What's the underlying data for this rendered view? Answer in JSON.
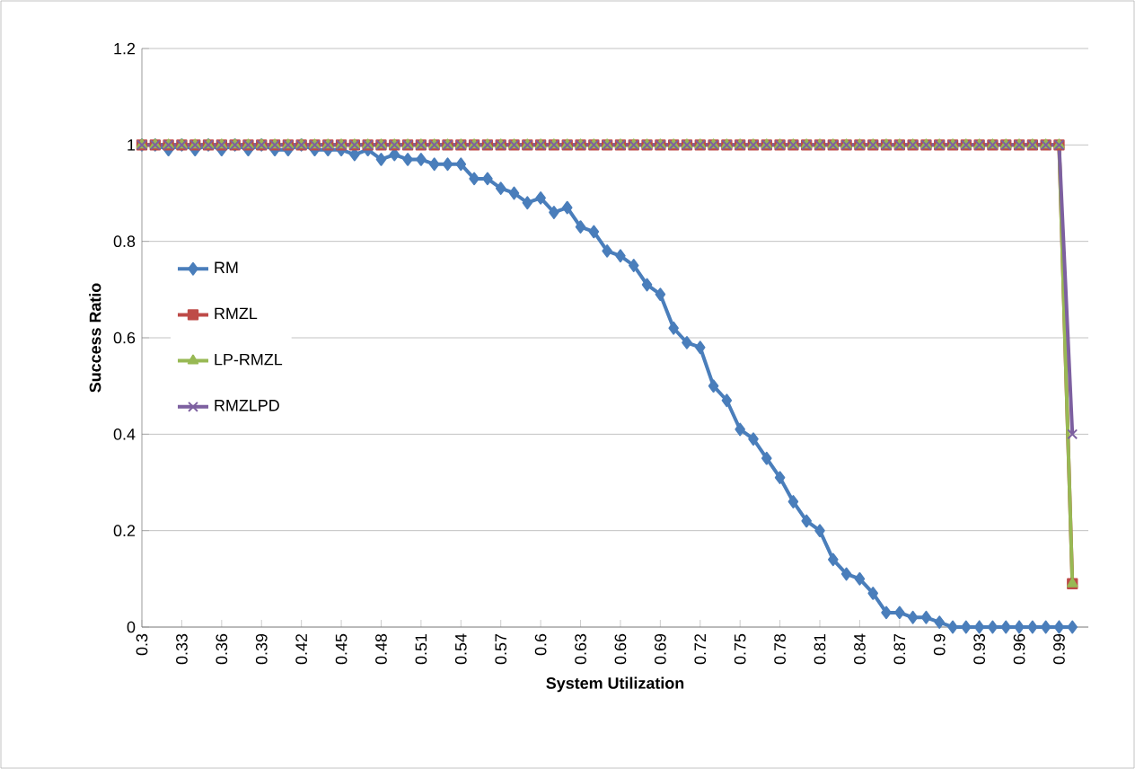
{
  "chart_data": {
    "type": "line",
    "xlabel": "System Utilization",
    "ylabel": "Success Ratio",
    "categories": [
      "0.3",
      null,
      null,
      "0.33",
      null,
      null,
      "0.36",
      null,
      null,
      "0.39",
      null,
      null,
      "0.42",
      null,
      null,
      "0.45",
      null,
      null,
      "0.48",
      null,
      null,
      "0.51",
      null,
      null,
      "0.54",
      null,
      null,
      "0.57",
      null,
      null,
      "0.6",
      null,
      null,
      "0.63",
      null,
      null,
      "0.66",
      null,
      null,
      "0.69",
      null,
      null,
      "0.72",
      null,
      null,
      "0.75",
      null,
      null,
      "0.78",
      null,
      null,
      "0.81",
      null,
      null,
      "0.84",
      null,
      null,
      "0.87",
      null,
      null,
      "0.9",
      null,
      null,
      "0.93",
      null,
      null,
      "0.96",
      null,
      null,
      "0.99",
      null
    ],
    "series": [
      {
        "name": "RM",
        "color": "#4a7ebb",
        "marker": "diamond",
        "values": [
          1,
          1,
          0.99,
          1,
          0.99,
          1,
          0.99,
          1,
          0.99,
          1,
          0.99,
          0.99,
          1,
          0.99,
          0.99,
          0.99,
          0.98,
          0.99,
          0.97,
          0.98,
          0.97,
          0.97,
          0.96,
          0.96,
          0.96,
          0.93,
          0.93,
          0.91,
          0.9,
          0.88,
          0.89,
          0.86,
          0.87,
          0.83,
          0.82,
          0.78,
          0.77,
          0.75,
          0.71,
          0.69,
          0.62,
          0.59,
          0.58,
          0.5,
          0.47,
          0.41,
          0.39,
          0.35,
          0.31,
          0.26,
          0.22,
          0.2,
          0.14,
          0.11,
          0.1,
          0.07,
          0.03,
          0.03,
          0.02,
          0.02,
          0.01,
          0,
          0,
          0,
          0,
          0,
          0,
          0,
          0,
          0,
          0
        ]
      },
      {
        "name": "RMZL",
        "color": "#be4b48",
        "marker": "square",
        "values": [
          1,
          1,
          1,
          1,
          1,
          1,
          1,
          1,
          1,
          1,
          1,
          1,
          1,
          1,
          1,
          1,
          1,
          1,
          1,
          1,
          1,
          1,
          1,
          1,
          1,
          1,
          1,
          1,
          1,
          1,
          1,
          1,
          1,
          1,
          1,
          1,
          1,
          1,
          1,
          1,
          1,
          1,
          1,
          1,
          1,
          1,
          1,
          1,
          1,
          1,
          1,
          1,
          1,
          1,
          1,
          1,
          1,
          1,
          1,
          1,
          1,
          1,
          1,
          1,
          1,
          1,
          1,
          1,
          1,
          1,
          0.09
        ]
      },
      {
        "name": "LP-RMZL",
        "color": "#98b954",
        "marker": "triangle",
        "values": [
          1,
          1,
          1,
          1,
          1,
          1,
          1,
          1,
          1,
          1,
          1,
          1,
          1,
          1,
          1,
          1,
          1,
          1,
          1,
          1,
          1,
          1,
          1,
          1,
          1,
          1,
          1,
          1,
          1,
          1,
          1,
          1,
          1,
          1,
          1,
          1,
          1,
          1,
          1,
          1,
          1,
          1,
          1,
          1,
          1,
          1,
          1,
          1,
          1,
          1,
          1,
          1,
          1,
          1,
          1,
          1,
          1,
          1,
          1,
          1,
          1,
          1,
          1,
          1,
          1,
          1,
          1,
          1,
          1,
          1,
          0.09
        ]
      },
      {
        "name": "RMZLPD",
        "color": "#7d60a0",
        "marker": "cross",
        "values": [
          1,
          1,
          1,
          1,
          1,
          1,
          1,
          1,
          1,
          1,
          1,
          1,
          1,
          1,
          1,
          1,
          1,
          1,
          1,
          1,
          1,
          1,
          1,
          1,
          1,
          1,
          1,
          1,
          1,
          1,
          1,
          1,
          1,
          1,
          1,
          1,
          1,
          1,
          1,
          1,
          1,
          1,
          1,
          1,
          1,
          1,
          1,
          1,
          1,
          1,
          1,
          1,
          1,
          1,
          1,
          1,
          1,
          1,
          1,
          1,
          1,
          1,
          1,
          1,
          1,
          1,
          1,
          1,
          1,
          1,
          0.4
        ]
      }
    ],
    "ylim": [
      0,
      1.2
    ],
    "yticks": [
      0,
      0.2,
      0.4,
      0.6,
      0.8,
      1,
      1.2
    ],
    "grid": "y",
    "legend": "left"
  }
}
